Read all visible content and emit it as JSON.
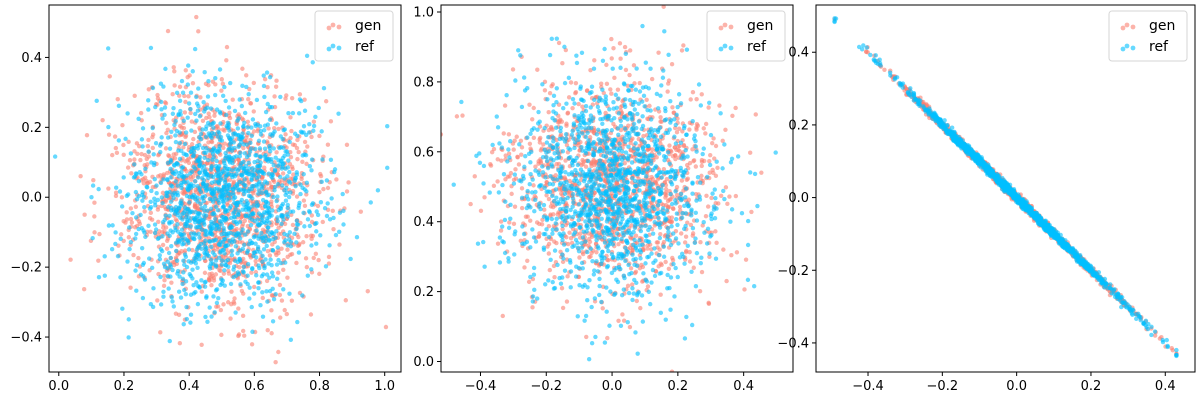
{
  "chart_data": [
    {
      "type": "scatter",
      "title": "",
      "xlabel": "",
      "ylabel": "",
      "xlim": [
        -0.03,
        1.05
      ],
      "ylim": [
        -0.5,
        0.55
      ],
      "xticks": [
        0.0,
        0.2,
        0.4,
        0.6,
        0.8,
        1.0
      ],
      "xtick_labels": [
        "0.0",
        "0.2",
        "0.4",
        "0.6",
        "0.8",
        "1.0"
      ],
      "yticks": [
        -0.4,
        -0.2,
        0.0,
        0.2,
        0.4
      ],
      "ytick_labels": [
        "−0.4",
        "−0.2",
        "0.0",
        "0.2",
        "0.4"
      ],
      "grid": false,
      "legend_position": "top-right",
      "distribution": {
        "shape": "isotropic-gaussian-cloud",
        "center": [
          0.5,
          0.0
        ],
        "std": [
          0.15,
          0.15
        ],
        "points_per_series": 1400
      },
      "series": [
        {
          "name": "gen",
          "color": "#fa8072"
        },
        {
          "name": "ref",
          "color": "#00bfff"
        }
      ]
    },
    {
      "type": "scatter",
      "title": "",
      "xlabel": "",
      "ylabel": "",
      "xlim": [
        -0.52,
        0.55
      ],
      "ylim": [
        -0.03,
        1.02
      ],
      "xticks": [
        -0.4,
        -0.2,
        0.0,
        0.2,
        0.4
      ],
      "xtick_labels": [
        "−0.4",
        "−0.2",
        "0.0",
        "0.2",
        "0.4"
      ],
      "yticks": [
        0.0,
        0.2,
        0.4,
        0.6,
        0.8,
        1.0
      ],
      "ytick_labels": [
        "0.0",
        "0.2",
        "0.4",
        "0.6",
        "0.8",
        "1.0"
      ],
      "grid": false,
      "legend_position": "top-right",
      "distribution": {
        "shape": "isotropic-gaussian-cloud",
        "center": [
          0.0,
          0.5
        ],
        "std": [
          0.15,
          0.15
        ],
        "points_per_series": 1400
      },
      "series": [
        {
          "name": "gen",
          "color": "#fa8072"
        },
        {
          "name": "ref",
          "color": "#00bfff"
        }
      ]
    },
    {
      "type": "scatter",
      "title": "",
      "xlabel": "",
      "ylabel": "",
      "xlim": [
        -0.54,
        0.48
      ],
      "ylim": [
        -0.48,
        0.53
      ],
      "xticks": [
        -0.4,
        -0.2,
        0.0,
        0.2,
        0.4
      ],
      "xtick_labels": [
        "−0.4",
        "−0.2",
        "0.0",
        "0.2",
        "0.4"
      ],
      "yticks": [
        -0.4,
        -0.2,
        0.0,
        0.2,
        0.4
      ],
      "ytick_labels": [
        "−0.4",
        "−0.2",
        "0.0",
        "0.2",
        "0.4"
      ],
      "grid": false,
      "legend_position": "top-right",
      "distribution": {
        "shape": "anti-diagonal-line",
        "relation": "y = -x",
        "x_range": [
          -0.49,
          0.43
        ],
        "x_std": 0.15,
        "y_noise": 0.006,
        "points_per_series": 1400
      },
      "series": [
        {
          "name": "gen",
          "color": "#fa8072"
        },
        {
          "name": "ref",
          "color": "#00bfff"
        }
      ]
    }
  ]
}
